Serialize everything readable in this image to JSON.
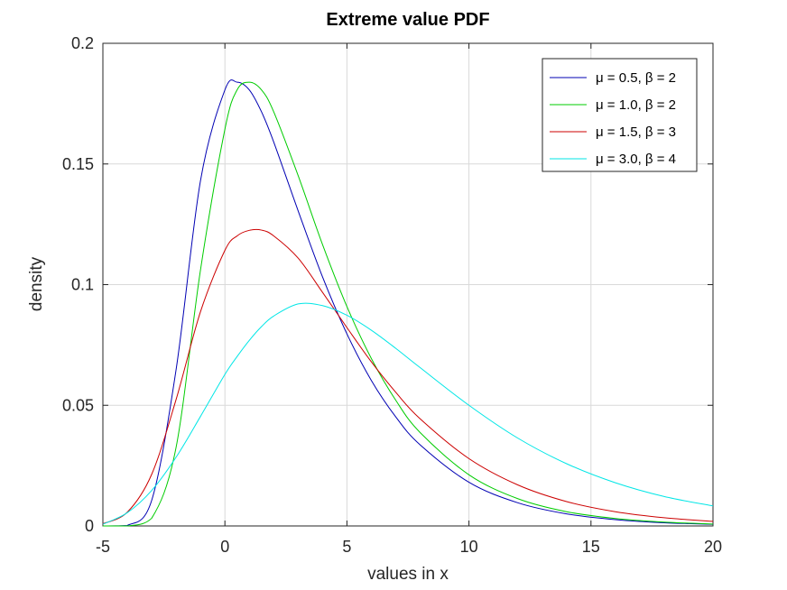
{
  "chart_data": {
    "type": "line",
    "title": "Extreme value PDF",
    "xlabel": "values in x",
    "ylabel": "density",
    "xlim": [
      -5,
      20
    ],
    "ylim": [
      0,
      0.2
    ],
    "xticks": [
      "-5",
      "0",
      "5",
      "10",
      "15",
      "20"
    ],
    "yticks": [
      "0",
      "0.05",
      "0.1",
      "0.15",
      "0.2"
    ],
    "grid": true,
    "legend_position": "top-right",
    "x": [
      -5.0,
      -4.0,
      -3.0,
      -2.0,
      -1.0,
      0.0,
      0.5,
      1.0,
      1.5,
      2.0,
      3.0,
      4.0,
      5.0,
      6.0,
      7.0,
      8.0,
      10.0,
      12.0,
      14.0,
      16.0,
      18.0,
      20.0
    ],
    "series": [
      {
        "name": "μ = 0.5, β = 2",
        "color": "#0000b3",
        "values": [
          0.0,
          0.0002,
          0.0106,
          0.0648,
          0.1431,
          0.1807,
          0.1839,
          0.1807,
          0.1716,
          0.1591,
          0.1306,
          0.1032,
          0.0796,
          0.0603,
          0.0452,
          0.0336,
          0.0181,
          0.0096,
          0.005,
          0.0026,
          0.0013,
          0.0007
        ]
      },
      {
        "name": "μ = 1.0, β = 2",
        "color": "#00cc00",
        "values": [
          0.0,
          0.0,
          0.0032,
          0.0326,
          0.1061,
          0.1644,
          0.1807,
          0.1839,
          0.1807,
          0.1716,
          0.1452,
          0.1166,
          0.0909,
          0.0694,
          0.0521,
          0.0387,
          0.0212,
          0.0113,
          0.0059,
          0.0031,
          0.0016,
          0.0008
        ]
      },
      {
        "name": "μ = 1.5, β = 3",
        "color": "#cc0000",
        "values": [
          0.0009,
          0.0057,
          0.0214,
          0.0524,
          0.0888,
          0.1142,
          0.1202,
          0.1225,
          0.1226,
          0.1202,
          0.111,
          0.0968,
          0.0822,
          0.068,
          0.0554,
          0.0444,
          0.0279,
          0.017,
          0.0101,
          0.0059,
          0.0034,
          0.0019
        ]
      },
      {
        "name": "μ = 3.0, β = 4",
        "color": "#00e6e6",
        "values": [
          0.0007,
          0.0055,
          0.0147,
          0.0285,
          0.0454,
          0.0628,
          0.0702,
          0.0769,
          0.0826,
          0.087,
          0.092,
          0.0913,
          0.0873,
          0.0811,
          0.0736,
          0.0656,
          0.05,
          0.0364,
          0.0258,
          0.0179,
          0.0122,
          0.0083
        ]
      }
    ]
  }
}
